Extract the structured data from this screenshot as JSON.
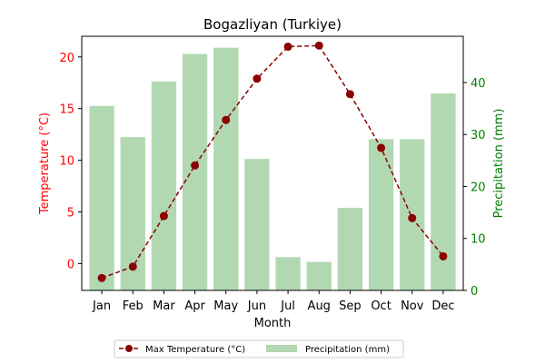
{
  "chart_data": {
    "type": "bar",
    "title": "Bogazliyan (Turkiye)",
    "xlabel": "Month",
    "categories": [
      "Jan",
      "Feb",
      "Mar",
      "Apr",
      "May",
      "Jun",
      "Jul",
      "Aug",
      "Sep",
      "Oct",
      "Nov",
      "Dec"
    ],
    "series": [
      {
        "name": "Max Temperature (°C)",
        "type": "line",
        "axis": "left",
        "values": [
          -1.4,
          -0.3,
          4.6,
          9.5,
          13.9,
          17.9,
          21.0,
          21.1,
          16.4,
          11.2,
          4.4,
          0.7
        ],
        "color": "#8b0000"
      },
      {
        "name": "Precipitation (mm)",
        "type": "bar",
        "axis": "right",
        "values": [
          35.5,
          29.5,
          40.2,
          45.5,
          46.7,
          25.3,
          6.4,
          5.5,
          15.9,
          29.1,
          29.1,
          37.9
        ],
        "color": "#b2d8b2"
      }
    ],
    "y_left": {
      "label": "Temperature (°C)",
      "lim": [
        -2.6,
        22.0
      ],
      "ticks": [
        0,
        5,
        10,
        15,
        20
      ],
      "color": "#ff0000"
    },
    "y_right": {
      "label": "Precipitation (mm)",
      "lim": [
        0,
        48.9
      ],
      "ticks": [
        0,
        10,
        20,
        30,
        40
      ],
      "color": "#008000"
    },
    "grid": false,
    "legend": "bottom-center"
  }
}
